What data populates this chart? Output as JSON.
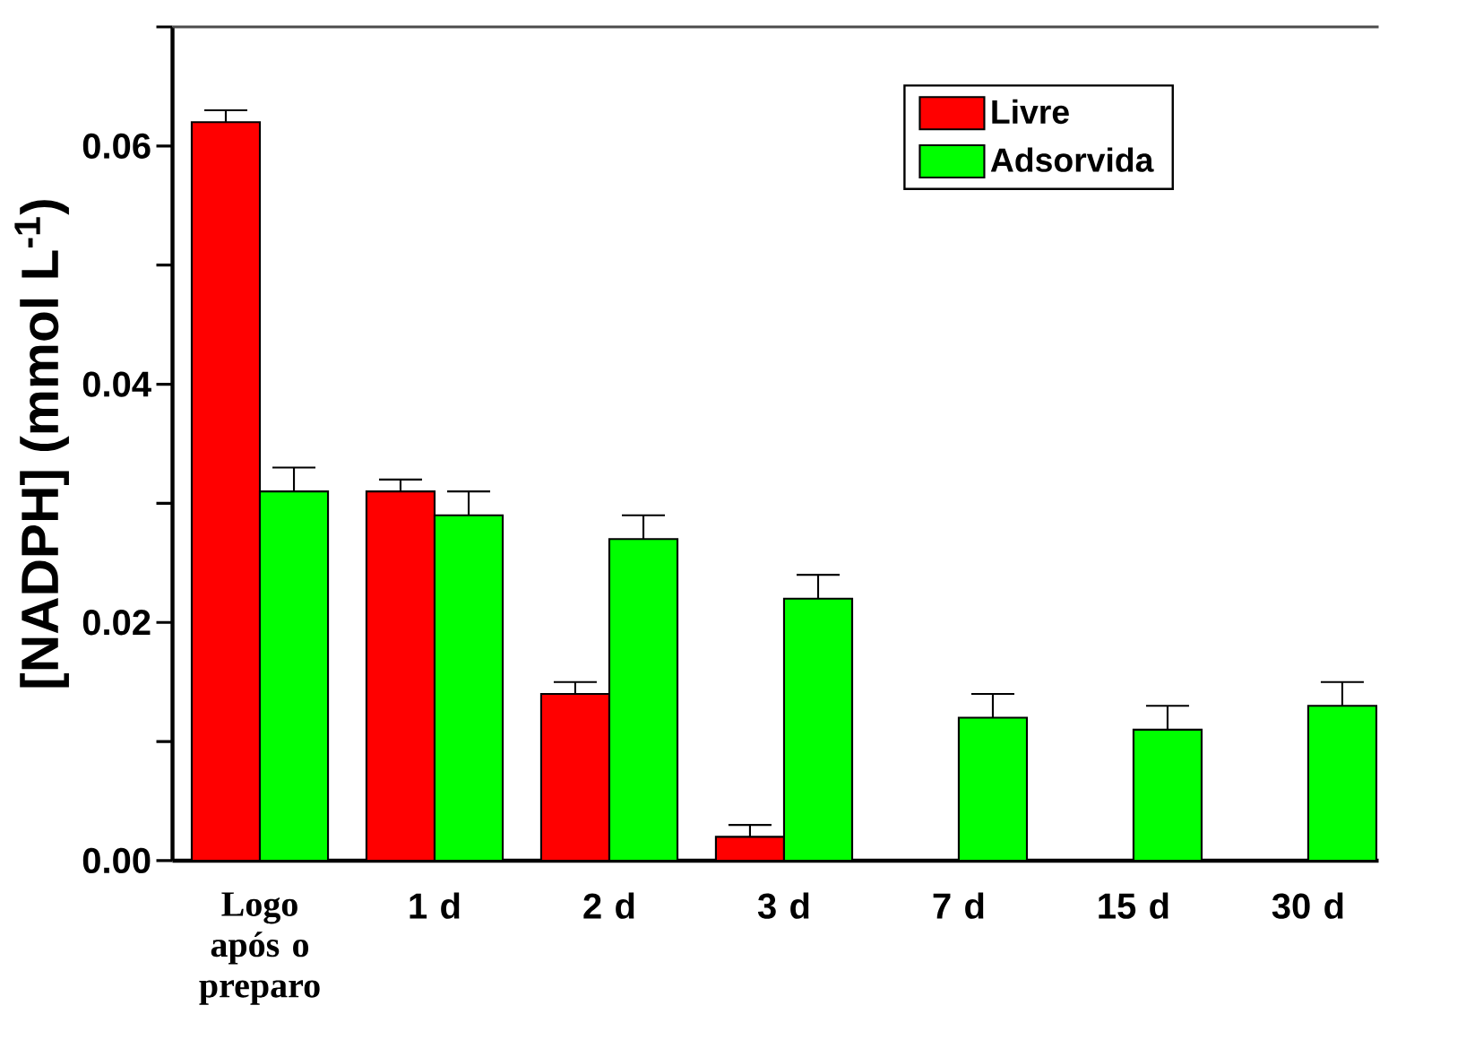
{
  "chart_data": {
    "type": "bar",
    "ylabel": "[NADPH] (mmol L$^{-1}$)",
    "categories": [
      "Logo após o preparo",
      "1 d",
      "2 d",
      "3 d",
      "7 d",
      "15 d",
      "30 d"
    ],
    "series": [
      {
        "name": "Livre",
        "color": "#ff0000",
        "values": [
          0.062,
          0.031,
          0.014,
          0.002,
          null,
          null,
          null
        ],
        "errors": [
          0.001,
          0.001,
          0.001,
          0.001,
          null,
          null,
          null
        ]
      },
      {
        "name": "Adsorvida",
        "color": "#00ff00",
        "values": [
          0.031,
          0.029,
          0.027,
          0.022,
          0.012,
          0.011,
          0.013
        ],
        "errors": [
          0.002,
          0.002,
          0.002,
          0.002,
          0.002,
          0.002,
          0.002
        ]
      }
    ],
    "ylim": [
      0,
      0.07
    ],
    "yticks": [
      {
        "value": 0,
        "label": "0.00"
      },
      {
        "value": 0.01,
        "label": null
      },
      {
        "value": 0.02,
        "label": "0.02"
      },
      {
        "value": 0.03,
        "label": null
      },
      {
        "value": 0.04,
        "label": "0.04"
      },
      {
        "value": 0.05,
        "label": null
      },
      {
        "value": 0.06,
        "label": "0.06"
      },
      {
        "value": 0.07,
        "label": null
      }
    ],
    "legend": "top right",
    "grid": false
  }
}
